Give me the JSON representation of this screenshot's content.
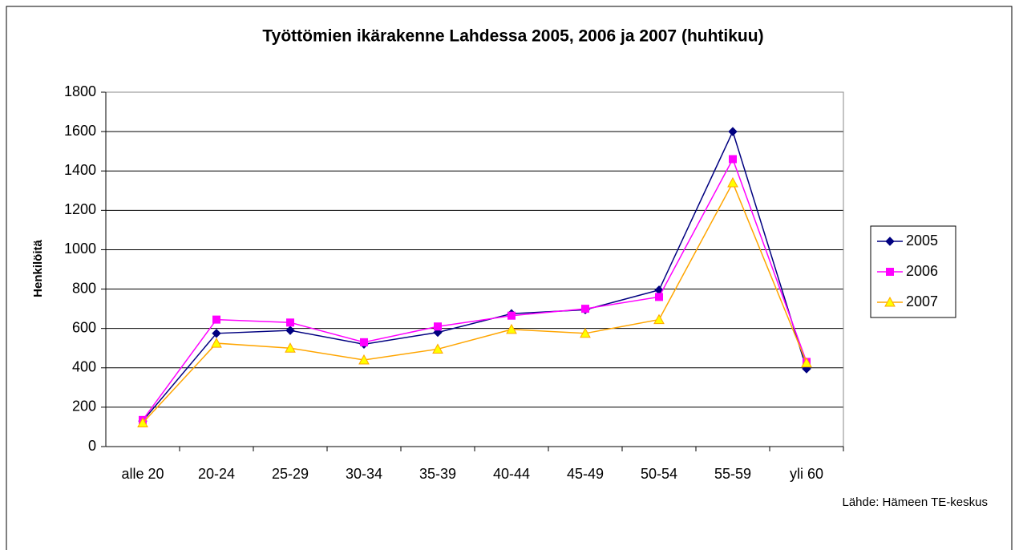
{
  "chart_data": {
    "type": "line",
    "title": "Työttömien ikärakenne Lahdessa 2005, 2006 ja 2007 (huhtikuu)",
    "y_label": "Henkilöitä",
    "source": "Lähde: Hämeen TE-keskus",
    "categories": [
      "alle 20",
      "20-24",
      "25-29",
      "30-34",
      "35-39",
      "40-44",
      "45-49",
      "50-54",
      "55-59",
      "yli 60"
    ],
    "series": [
      {
        "name": "2005",
        "color": "#000080",
        "marker": "diamond",
        "values": [
          130,
          575,
          590,
          520,
          580,
          675,
          695,
          795,
          1600,
          395
        ]
      },
      {
        "name": "2006",
        "color": "#ff00ff",
        "marker": "square",
        "values": [
          135,
          645,
          630,
          530,
          610,
          665,
          700,
          760,
          1460,
          430
        ]
      },
      {
        "name": "2007",
        "color": "#ffa500",
        "marker_fill": "#ffff00",
        "marker": "triangle",
        "values": [
          120,
          525,
          500,
          440,
          495,
          595,
          575,
          645,
          1340,
          425
        ]
      }
    ],
    "ylim": [
      0,
      1800
    ],
    "yticks": [
      0,
      200,
      400,
      600,
      800,
      1000,
      1200,
      1400,
      1600,
      1800
    ],
    "grid": true,
    "legend": "right"
  }
}
